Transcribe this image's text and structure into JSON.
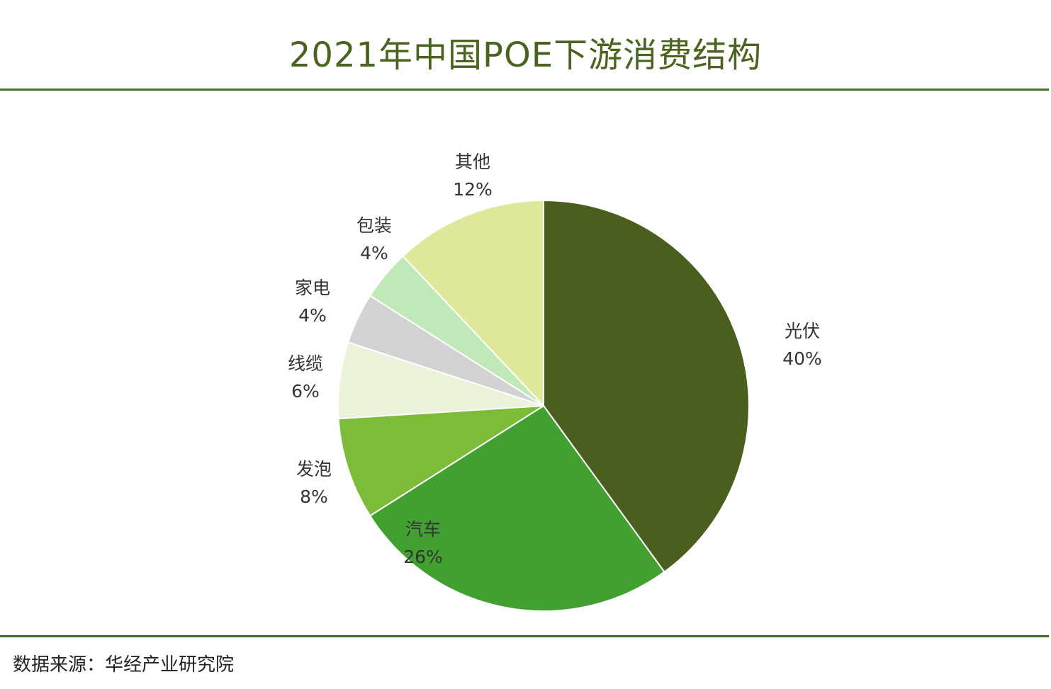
{
  "title": "2021年中国POE下游消费结构",
  "source": "数据来源：华经产业研究院",
  "chart_data": {
    "type": "pie",
    "title": "2021年中国POE下游消费结构",
    "start": "12 o'clock",
    "direction": "clockwise",
    "slices": [
      {
        "name": "光伏",
        "value": 40,
        "label": "40%",
        "color": "#4a5e1e"
      },
      {
        "name": "汽车",
        "value": 26,
        "label": "26%",
        "color": "#42a031"
      },
      {
        "name": "发泡",
        "value": 8,
        "label": "8%",
        "color": "#7cbc38"
      },
      {
        "name": "线缆",
        "value": 6,
        "label": "6%",
        "color": "#eaf3da"
      },
      {
        "name": "家电",
        "value": 4,
        "label": "4%",
        "color": "#d2d2d2"
      },
      {
        "name": "包装",
        "value": 4,
        "label": "4%",
        "color": "#c1e8b8"
      },
      {
        "name": "其他",
        "value": 12,
        "label": "12%",
        "color": "#dfe89a"
      }
    ]
  }
}
